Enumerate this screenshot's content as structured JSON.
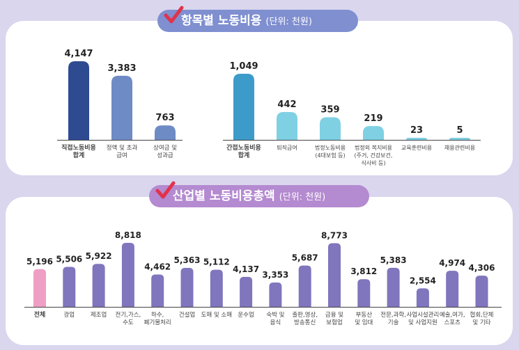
{
  "colors": {
    "background": "#d9d6ee",
    "title1_pill": "#7f8fd0",
    "title2_pill": "#b48ad0",
    "check_mark": "#e0334d"
  },
  "chart_data": [
    {
      "type": "bar",
      "title": "항목별 노동비용",
      "unit": "(단위: 천원)",
      "groups": [
        {
          "categories": [
            [
              "직접노동비용",
              "합계"
            ],
            [
              "정액 및 초과",
              "급여"
            ],
            [
              "상여금 및",
              "성과급"
            ]
          ],
          "values": [
            4147,
            3383,
            763
          ],
          "value_labels": [
            "4,147",
            "3,383",
            "763"
          ],
          "colors": [
            "#2e4b92",
            "#6f8bc6",
            "#6f8bc6"
          ],
          "label_colors": [
            "#2e4b92",
            "#222222",
            "#222222"
          ]
        },
        {
          "categories": [
            [
              "간접노동비용",
              "합계"
            ],
            [
              "퇴직급여"
            ],
            [
              "법정노동비용",
              "(4대보험 등)"
            ],
            [
              "법정외 복지비용",
              "(주거, 건강보건,",
              "식사비 등)"
            ],
            [
              "교육훈련비용"
            ],
            [
              "채용관련비용"
            ]
          ],
          "values": [
            1049,
            442,
            359,
            219,
            23,
            5
          ],
          "value_labels": [
            "1,049",
            "442",
            "359",
            "219",
            "23",
            "5"
          ],
          "colors": [
            "#3d9bc9",
            "#7fd0e3",
            "#7fd0e3",
            "#7fd0e3",
            "#7fd0e3",
            "#7fd0e3"
          ],
          "label_colors": [
            "#3d9bc9",
            "#222222",
            "#222222",
            "#222222",
            "#222222",
            "#222222"
          ]
        }
      ]
    },
    {
      "type": "bar",
      "title": "산업별 노동비용총액",
      "unit": "(단위: 천원)",
      "categories": [
        [
          "전체"
        ],
        [
          "광업"
        ],
        [
          "제조업"
        ],
        [
          "전기,가스,",
          "수도"
        ],
        [
          "하수,",
          "폐기물처리"
        ],
        [
          "건설업"
        ],
        [
          "도매 및 소매"
        ],
        [
          "운수업"
        ],
        [
          "숙박 및",
          "음식"
        ],
        [
          "출판,영상,",
          "방송통신"
        ],
        [
          "금융 및",
          "보험업"
        ],
        [
          "부동산",
          "및 임대"
        ],
        [
          "전문,과학,",
          "기술"
        ],
        [
          "사업시설관리",
          "및 사업지원"
        ],
        [
          "예술,여가,",
          "스포츠"
        ],
        [
          "협회,단체",
          "및 기타"
        ]
      ],
      "values": [
        5196,
        5506,
        5922,
        8818,
        4462,
        5363,
        5112,
        4137,
        3353,
        5687,
        8773,
        3812,
        5383,
        2554,
        4974,
        4306
      ],
      "value_labels": [
        "5,196",
        "5,506",
        "5,922",
        "8,818",
        "4,462",
        "5,363",
        "5,112",
        "4,137",
        "3,353",
        "5,687",
        "8,773",
        "3,812",
        "5,383",
        "2,554",
        "4,974",
        "4,306"
      ],
      "colors": [
        "#ef9fc4",
        "#7f76bd",
        "#7f76bd",
        "#7f76bd",
        "#7f76bd",
        "#7f76bd",
        "#7f76bd",
        "#7f76bd",
        "#7f76bd",
        "#7f76bd",
        "#7f76bd",
        "#7f76bd",
        "#7f76bd",
        "#7f76bd",
        "#7f76bd",
        "#7f76bd"
      ]
    }
  ]
}
